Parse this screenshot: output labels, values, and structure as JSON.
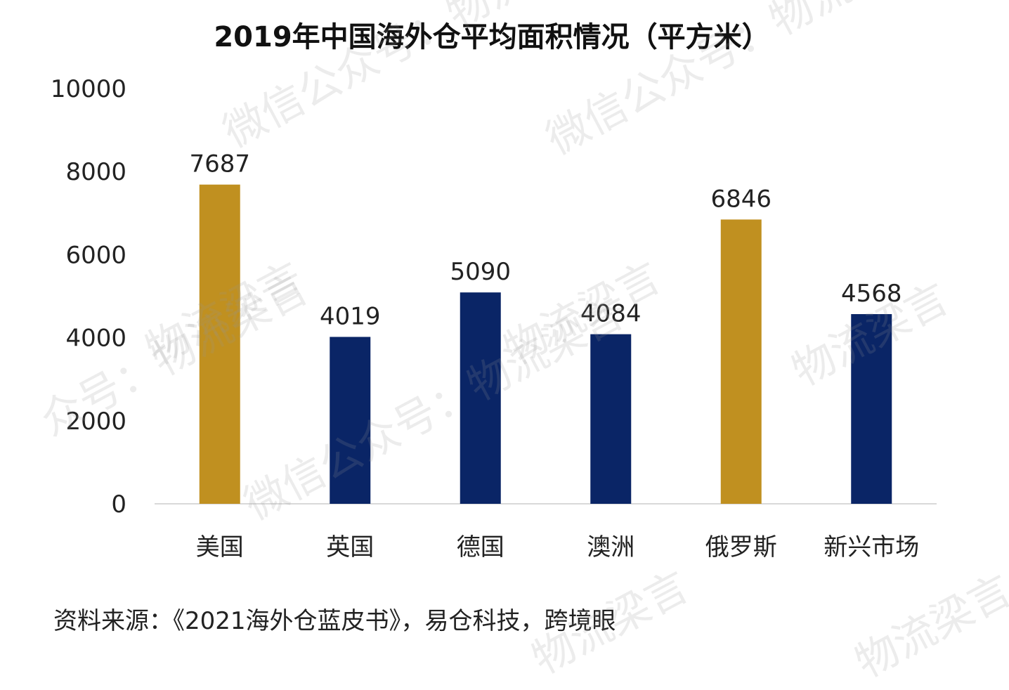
{
  "chart_data": {
    "type": "bar",
    "title": "2019年中国海外仓平均面积情况（平方米）",
    "categories": [
      "美国",
      "英国",
      "德国",
      "澳洲",
      "俄罗斯",
      "新兴市场"
    ],
    "values": [
      7687,
      4019,
      5090,
      4084,
      6846,
      4568
    ],
    "bar_colors": [
      "#C09020",
      "#0A2566",
      "#0A2566",
      "#0A2566",
      "#C09020",
      "#0A2566"
    ],
    "ylim": [
      0,
      10000
    ],
    "yticks": [
      0,
      2000,
      4000,
      6000,
      8000,
      10000
    ],
    "xlabel": "",
    "ylabel": "",
    "grid": false,
    "data_labels": true
  },
  "source_note": "资料来源：《2021海外仓蓝皮书》，易仓科技，跨境眼",
  "watermarks": [
    "微信公众号：物流梁言",
    "微信公众号：物流梁言",
    "物流梁言",
    "众号：物流梁言",
    "微信公众号：物流梁言",
    "物流梁言",
    "物流梁言",
    "物流梁言",
    "物流梁言"
  ],
  "colors": {
    "gold": "#C09020",
    "navy": "#0A2566",
    "axis": "#D9D9D9"
  }
}
